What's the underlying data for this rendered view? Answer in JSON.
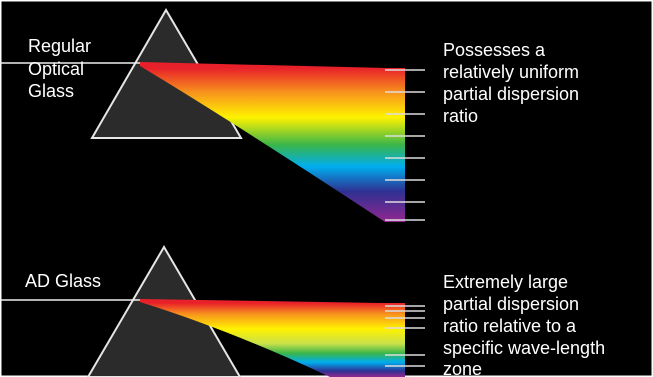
{
  "panels": [
    {
      "label_lines": [
        "Regular",
        "Optical",
        "Glass"
      ],
      "description_lines": [
        "Possesses a",
        "relatively uniform",
        "partial dispersion",
        "ratio"
      ]
    },
    {
      "label_lines": [
        "AD Glass"
      ],
      "description_lines": [
        "Extremely large",
        "partial dispersion",
        "ratio relative to a",
        "specific wave-length",
        "zone"
      ]
    }
  ]
}
